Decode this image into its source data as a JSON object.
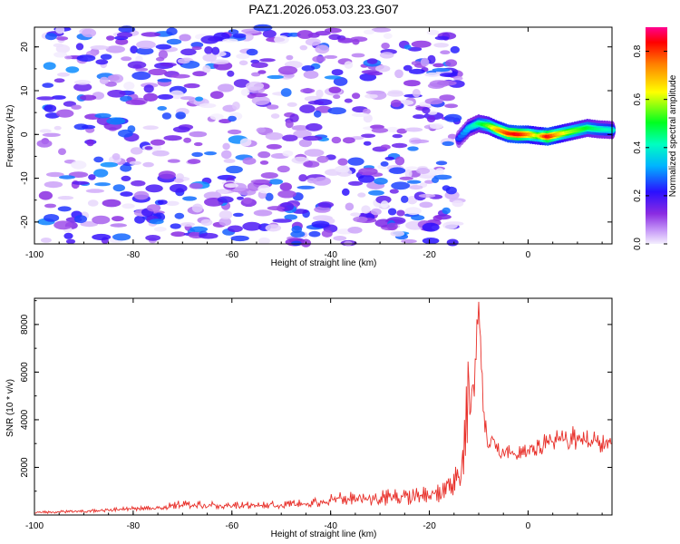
{
  "title": "PAZ1.2026.053.03.23.G07",
  "chart_data": [
    {
      "type": "heatmap",
      "xlabel": "Height of straight line (km)",
      "ylabel": "Frequency (Hz)",
      "xlim": [
        -100,
        17
      ],
      "ylim": [
        -25,
        24.5
      ],
      "xticks": [
        -100,
        -80,
        -60,
        -40,
        -20,
        0
      ],
      "yticks": [
        -20,
        -10,
        0,
        10,
        20
      ],
      "noise_region_x": [
        -98,
        -14
      ],
      "noise_amplitude_range": [
        0.0,
        0.3
      ],
      "signal_ridge": {
        "x": [
          -14,
          -12,
          -10,
          -8,
          -6,
          -4,
          -2,
          0,
          2,
          4,
          6,
          8,
          10,
          12,
          14,
          17
        ],
        "frequency": [
          -1,
          1.5,
          2.5,
          2.0,
          1.0,
          0.2,
          0.0,
          0.0,
          -0.3,
          -0.5,
          0.0,
          0.5,
          1.0,
          1.5,
          1.2,
          1.0
        ],
        "amplitude": [
          0.25,
          0.35,
          0.45,
          0.55,
          0.7,
          0.8,
          0.85,
          0.75,
          0.6,
          0.85,
          0.7,
          0.6,
          0.55,
          0.5,
          0.45,
          0.4
        ]
      },
      "colorbar": {
        "label": "Normalized spectral amplitude",
        "range": [
          0.0,
          0.9
        ],
        "ticks": [
          0.0,
          0.2,
          0.4,
          0.6,
          0.8
        ]
      }
    },
    {
      "type": "line",
      "xlabel": "Height of straight line (km)",
      "ylabel": "SNR (10 * v/v)",
      "xlim": [
        -100,
        17
      ],
      "ylim": [
        0,
        9100
      ],
      "xticks": [
        -100,
        -80,
        -60,
        -40,
        -20,
        0
      ],
      "yticks": [
        2000,
        4000,
        6000,
        8000
      ],
      "series": [
        {
          "name": "SNR",
          "color": "#e8302a",
          "x": [
            -100,
            -90,
            -85,
            -80,
            -75,
            -70,
            -65,
            -60,
            -55,
            -50,
            -45,
            -40,
            -35,
            -30,
            -25,
            -20,
            -18,
            -16,
            -14,
            -13,
            -12,
            -11,
            -10,
            -9,
            -8,
            -7,
            -6,
            -5,
            -4,
            -2,
            0,
            2,
            4,
            6,
            8,
            10,
            12,
            14,
            17
          ],
          "y": [
            100,
            150,
            200,
            250,
            300,
            450,
            400,
            400,
            380,
            420,
            500,
            600,
            700,
            700,
            700,
            800,
            900,
            1200,
            1500,
            2500,
            5000,
            5500,
            8900,
            4000,
            3000,
            3500,
            2500,
            2700,
            2600,
            2600,
            2700,
            2800,
            3000,
            3200,
            3000,
            3300,
            3100,
            3000,
            3000
          ],
          "jitter": [
            80,
            100,
            120,
            150,
            180,
            300,
            250,
            250,
            250,
            300,
            350,
            450,
            500,
            550,
            550,
            600,
            700,
            1000,
            1500,
            2500,
            3000,
            3000,
            0,
            1500,
            1000,
            900,
            700,
            600,
            500,
            500,
            500,
            600,
            700,
            700,
            800,
            900,
            800,
            700,
            600
          ]
        }
      ]
    }
  ]
}
